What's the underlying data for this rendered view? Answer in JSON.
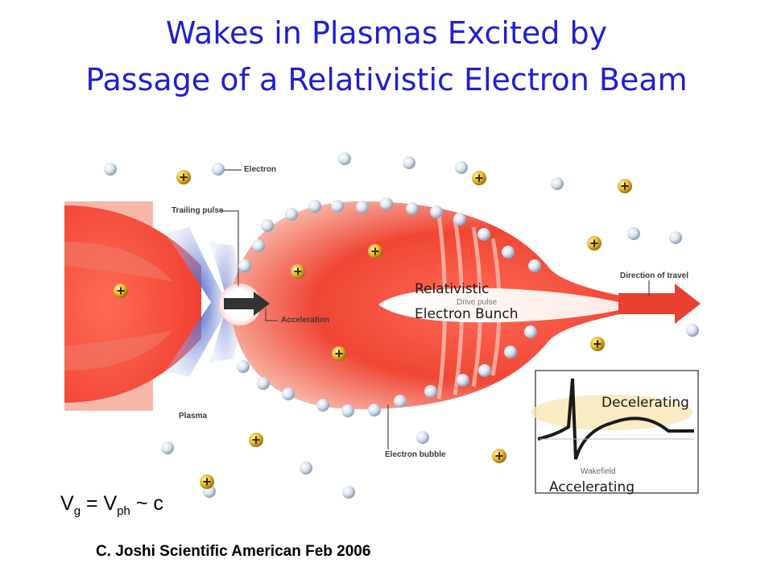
{
  "title": {
    "line1": "Wakes in Plasmas Excited by",
    "line2": "Passage of a Relativistic Electron Beam"
  },
  "labels": {
    "electron": "Electron",
    "trailing_pulse": "Trailing pulse",
    "acceleration": "Acceleration",
    "plasma": "Plasma",
    "electron_bubble": "Electron bubble",
    "drive_pulse": "Drive pulse",
    "direction_of_travel": "Direction of travel",
    "relativistic": "Relativistic",
    "electron_bunch": "Electron Bunch",
    "wakefield": "Wakefield",
    "decelerating": "Decelerating",
    "accelerating": "Accelerating"
  },
  "formula": {
    "v1": "V",
    "sub1": "g",
    "eq": " = V",
    "sub2": "ph",
    "tail": " ~ c"
  },
  "credit": "C. Joshi Scientific American Feb 2006",
  "colors": {
    "title": "#1f1fd1",
    "plasma_red": "#ee3b2e",
    "blue_region": "#4a67c8",
    "arrow": "#e8412f",
    "ion": "#d9a81a"
  },
  "icons": {
    "electron": "sphere",
    "ion": "plus-ball"
  }
}
